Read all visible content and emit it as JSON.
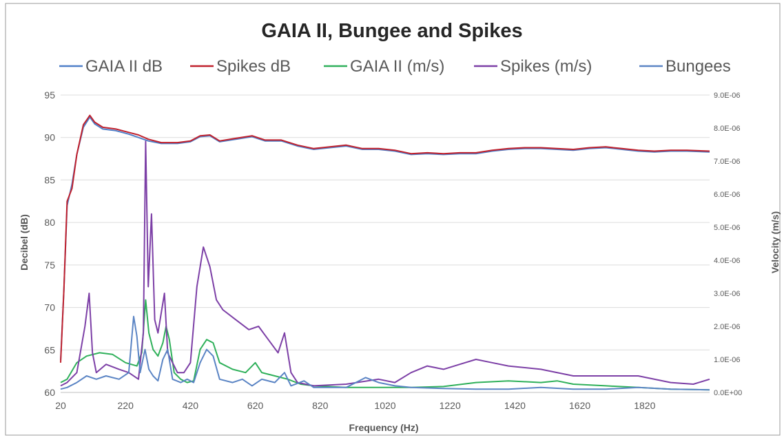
{
  "chart_data": {
    "type": "line",
    "title": "GAIA II, Bungee and Spikes",
    "xlabel": "Frequency (Hz)",
    "ylabel_left": "Decibel (dB)",
    "ylabel_right": "Velocity (m/s)",
    "xlim": [
      20,
      2020
    ],
    "ylim_left": [
      60,
      95
    ],
    "ylim_right": [
      0,
      9e-06
    ],
    "x_ticks": [
      20,
      220,
      420,
      620,
      820,
      1020,
      1220,
      1420,
      1620,
      1820
    ],
    "x_tick_labels": [
      "20",
      "220",
      "420",
      "620",
      "820",
      "1020",
      "1220",
      "1420",
      "1620",
      "1820"
    ],
    "y_left_ticks": [
      60,
      65,
      70,
      75,
      80,
      85,
      90,
      95
    ],
    "y_left_tick_labels": [
      "60",
      "65",
      "70",
      "75",
      "80",
      "85",
      "90",
      "95"
    ],
    "y_right_ticks": [
      0,
      1e-06,
      2e-06,
      3e-06,
      4e-06,
      5e-06,
      6e-06,
      7e-06,
      8e-06,
      9e-06
    ],
    "y_right_tick_labels": [
      "0.0E+00",
      "1.0E-06",
      "2.0E-06",
      "3.0E-06",
      "4.0E-06",
      "5.0E-06",
      "6.0E-06",
      "7.0E-06",
      "8.0E-06",
      "9.0E-06"
    ],
    "grid": true,
    "legend_position": "top",
    "series": [
      {
        "name": "GAIA II dB",
        "axis": "left",
        "color": "#4f7fc8",
        "points": [
          [
            20,
            63.8
          ],
          [
            30,
            72
          ],
          [
            40,
            82
          ],
          [
            55,
            84.5
          ],
          [
            70,
            88
          ],
          [
            90,
            91.2
          ],
          [
            110,
            92.4
          ],
          [
            125,
            91.6
          ],
          [
            150,
            91
          ],
          [
            190,
            90.8
          ],
          [
            230,
            90.4
          ],
          [
            260,
            90
          ],
          [
            290,
            89.6
          ],
          [
            330,
            89.3
          ],
          [
            380,
            89.3
          ],
          [
            420,
            89.5
          ],
          [
            450,
            90.1
          ],
          [
            480,
            90.2
          ],
          [
            510,
            89.5
          ],
          [
            560,
            89.8
          ],
          [
            610,
            90.1
          ],
          [
            650,
            89.6
          ],
          [
            700,
            89.6
          ],
          [
            750,
            89
          ],
          [
            800,
            88.6
          ],
          [
            850,
            88.8
          ],
          [
            900,
            89
          ],
          [
            950,
            88.6
          ],
          [
            1000,
            88.6
          ],
          [
            1050,
            88.4
          ],
          [
            1100,
            88
          ],
          [
            1150,
            88.1
          ],
          [
            1200,
            88
          ],
          [
            1250,
            88.1
          ],
          [
            1300,
            88.1
          ],
          [
            1350,
            88.4
          ],
          [
            1400,
            88.6
          ],
          [
            1450,
            88.7
          ],
          [
            1500,
            88.7
          ],
          [
            1550,
            88.6
          ],
          [
            1600,
            88.5
          ],
          [
            1650,
            88.7
          ],
          [
            1700,
            88.8
          ],
          [
            1750,
            88.6
          ],
          [
            1800,
            88.4
          ],
          [
            1850,
            88.3
          ],
          [
            1900,
            88.4
          ],
          [
            1950,
            88.4
          ],
          [
            2020,
            88.3
          ]
        ]
      },
      {
        "name": "Spikes dB",
        "axis": "left",
        "color": "#c0202c",
        "points": [
          [
            20,
            63.5
          ],
          [
            30,
            72
          ],
          [
            40,
            82.5
          ],
          [
            55,
            84
          ],
          [
            70,
            88
          ],
          [
            90,
            91.5
          ],
          [
            110,
            92.6
          ],
          [
            125,
            91.8
          ],
          [
            150,
            91.2
          ],
          [
            190,
            91
          ],
          [
            230,
            90.6
          ],
          [
            260,
            90.3
          ],
          [
            290,
            89.8
          ],
          [
            330,
            89.4
          ],
          [
            380,
            89.4
          ],
          [
            420,
            89.6
          ],
          [
            450,
            90.2
          ],
          [
            480,
            90.3
          ],
          [
            510,
            89.6
          ],
          [
            560,
            89.9
          ],
          [
            610,
            90.2
          ],
          [
            650,
            89.7
          ],
          [
            700,
            89.7
          ],
          [
            750,
            89.1
          ],
          [
            800,
            88.7
          ],
          [
            850,
            88.9
          ],
          [
            900,
            89.1
          ],
          [
            950,
            88.7
          ],
          [
            1000,
            88.7
          ],
          [
            1050,
            88.5
          ],
          [
            1100,
            88.1
          ],
          [
            1150,
            88.2
          ],
          [
            1200,
            88.1
          ],
          [
            1250,
            88.2
          ],
          [
            1300,
            88.2
          ],
          [
            1350,
            88.5
          ],
          [
            1400,
            88.7
          ],
          [
            1450,
            88.8
          ],
          [
            1500,
            88.8
          ],
          [
            1550,
            88.7
          ],
          [
            1600,
            88.6
          ],
          [
            1650,
            88.8
          ],
          [
            1700,
            88.9
          ],
          [
            1750,
            88.7
          ],
          [
            1800,
            88.5
          ],
          [
            1850,
            88.4
          ],
          [
            1900,
            88.5
          ],
          [
            1950,
            88.5
          ],
          [
            2020,
            88.4
          ]
        ]
      },
      {
        "name": "GAIA II (m/s)",
        "axis": "right",
        "color": "#2fb05a",
        "points": [
          [
            20,
            3e-07
          ],
          [
            40,
            4e-07
          ],
          [
            70,
            9e-07
          ],
          [
            100,
            1.1e-06
          ],
          [
            140,
            1.2e-06
          ],
          [
            180,
            1.15e-06
          ],
          [
            220,
            9e-07
          ],
          [
            255,
            8e-07
          ],
          [
            270,
            1.2e-06
          ],
          [
            282,
            2.8e-06
          ],
          [
            292,
            1.8e-06
          ],
          [
            305,
            1.3e-06
          ],
          [
            320,
            1.1e-06
          ],
          [
            335,
            1.5e-06
          ],
          [
            345,
            2e-06
          ],
          [
            355,
            1.6e-06
          ],
          [
            370,
            6e-07
          ],
          [
            390,
            4e-07
          ],
          [
            410,
            3e-07
          ],
          [
            430,
            3.5e-07
          ],
          [
            450,
            1.3e-06
          ],
          [
            470,
            1.6e-06
          ],
          [
            490,
            1.5e-06
          ],
          [
            510,
            9e-07
          ],
          [
            550,
            7e-07
          ],
          [
            590,
            6e-07
          ],
          [
            620,
            9e-07
          ],
          [
            640,
            6e-07
          ],
          [
            680,
            5e-07
          ],
          [
            720,
            4e-07
          ],
          [
            760,
            2.5e-07
          ],
          [
            800,
            2e-07
          ],
          [
            900,
            1.5e-07
          ],
          [
            1000,
            1.5e-07
          ],
          [
            1100,
            1.5e-07
          ],
          [
            1200,
            1.8e-07
          ],
          [
            1300,
            3e-07
          ],
          [
            1400,
            3.5e-07
          ],
          [
            1500,
            3e-07
          ],
          [
            1550,
            3.5e-07
          ],
          [
            1600,
            2.5e-07
          ],
          [
            1700,
            2e-07
          ],
          [
            1800,
            1.5e-07
          ],
          [
            1900,
            1e-07
          ],
          [
            2020,
            8e-08
          ]
        ]
      },
      {
        "name": "Spikes (m/s)",
        "axis": "right",
        "color": "#7c3fa6",
        "points": [
          [
            20,
            2e-07
          ],
          [
            40,
            3e-07
          ],
          [
            70,
            6e-07
          ],
          [
            95,
            2e-06
          ],
          [
            108,
            3e-06
          ],
          [
            118,
            1.2e-06
          ],
          [
            130,
            6e-07
          ],
          [
            160,
            8.5e-07
          ],
          [
            200,
            7e-07
          ],
          [
            230,
            6e-07
          ],
          [
            260,
            4e-07
          ],
          [
            275,
            1.8e-06
          ],
          [
            282,
            7.6e-06
          ],
          [
            290,
            3.2e-06
          ],
          [
            300,
            5.4e-06
          ],
          [
            310,
            2.2e-06
          ],
          [
            320,
            1.8e-06
          ],
          [
            330,
            2.4e-06
          ],
          [
            340,
            3e-06
          ],
          [
            350,
            1.2e-06
          ],
          [
            380,
            6e-07
          ],
          [
            400,
            6e-07
          ],
          [
            420,
            9e-07
          ],
          [
            440,
            3.2e-06
          ],
          [
            460,
            4.4e-06
          ],
          [
            480,
            3.8e-06
          ],
          [
            500,
            2.8e-06
          ],
          [
            520,
            2.5e-06
          ],
          [
            560,
            2.2e-06
          ],
          [
            600,
            1.9e-06
          ],
          [
            630,
            2e-06
          ],
          [
            660,
            1.6e-06
          ],
          [
            690,
            1.2e-06
          ],
          [
            710,
            1.8e-06
          ],
          [
            730,
            6e-07
          ],
          [
            750,
            3e-07
          ],
          [
            800,
            2e-07
          ],
          [
            900,
            2.5e-07
          ],
          [
            1000,
            4e-07
          ],
          [
            1050,
            3e-07
          ],
          [
            1100,
            6e-07
          ],
          [
            1150,
            8e-07
          ],
          [
            1200,
            7e-07
          ],
          [
            1250,
            8.5e-07
          ],
          [
            1300,
            1e-06
          ],
          [
            1350,
            9e-07
          ],
          [
            1400,
            8e-07
          ],
          [
            1500,
            7e-07
          ],
          [
            1600,
            5e-07
          ],
          [
            1700,
            5e-07
          ],
          [
            1800,
            5e-07
          ],
          [
            1900,
            3e-07
          ],
          [
            1970,
            2.5e-07
          ],
          [
            2020,
            4e-07
          ]
        ]
      },
      {
        "name": "Bungees",
        "axis": "right",
        "color": "#5a84c4",
        "points": [
          [
            20,
            1e-07
          ],
          [
            40,
            1.5e-07
          ],
          [
            70,
            3e-07
          ],
          [
            100,
            5e-07
          ],
          [
            130,
            4e-07
          ],
          [
            160,
            5e-07
          ],
          [
            200,
            4e-07
          ],
          [
            230,
            6e-07
          ],
          [
            245,
            2.3e-06
          ],
          [
            255,
            1.7e-06
          ],
          [
            265,
            6e-07
          ],
          [
            280,
            1.3e-06
          ],
          [
            292,
            7e-07
          ],
          [
            305,
            5e-07
          ],
          [
            320,
            3.5e-07
          ],
          [
            335,
            1e-06
          ],
          [
            350,
            1.3e-06
          ],
          [
            365,
            4e-07
          ],
          [
            390,
            3e-07
          ],
          [
            410,
            4e-07
          ],
          [
            430,
            3e-07
          ],
          [
            450,
            9e-07
          ],
          [
            470,
            1.3e-06
          ],
          [
            490,
            1.1e-06
          ],
          [
            510,
            4e-07
          ],
          [
            550,
            3e-07
          ],
          [
            580,
            4e-07
          ],
          [
            610,
            2e-07
          ],
          [
            640,
            4e-07
          ],
          [
            680,
            3e-07
          ],
          [
            710,
            6e-07
          ],
          [
            730,
            2e-07
          ],
          [
            770,
            3.5e-07
          ],
          [
            800,
            1.5e-07
          ],
          [
            850,
            1.5e-07
          ],
          [
            900,
            1.5e-07
          ],
          [
            960,
            4.5e-07
          ],
          [
            1000,
            3e-07
          ],
          [
            1050,
            2e-07
          ],
          [
            1100,
            1.5e-07
          ],
          [
            1200,
            1.2e-07
          ],
          [
            1300,
            1e-07
          ],
          [
            1400,
            1e-07
          ],
          [
            1500,
            1.5e-07
          ],
          [
            1600,
            1e-07
          ],
          [
            1700,
            1e-07
          ],
          [
            1800,
            1.5e-07
          ],
          [
            1900,
            1e-07
          ],
          [
            2020,
            8e-08
          ]
        ]
      }
    ]
  }
}
